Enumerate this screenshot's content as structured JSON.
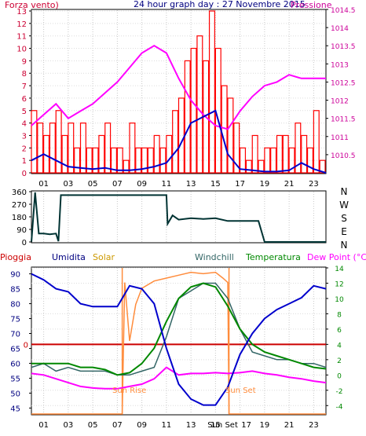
{
  "colors": {
    "wind": "#ff0000",
    "wind_avg": "#0000cc",
    "pressure": "#ff00ff",
    "direction": "#003333",
    "humidity": "#0000cc",
    "solar": "#ff8c3c",
    "windchill": "#336666",
    "temperature": "#008800",
    "dewpoint": "#ff00ff",
    "rain": "#cc0000",
    "axis_left_top": "#cc0033",
    "axis_right_top": "#cc0099",
    "axis_left_bottom": "#000080",
    "axis_right_bottom": "#008800",
    "title": "#000080"
  },
  "x_ticks": [
    "01",
    "03",
    "05",
    "07",
    "09",
    "11",
    "13",
    "15",
    "17",
    "19",
    "21",
    "23"
  ],
  "chart_data": [
    {
      "type": "bar",
      "title": "24 hour graph day : 27 Novembre 2015",
      "series": [
        {
          "name": "Forza vento",
          "type": "bar",
          "x": [
            0,
            0.5,
            1,
            1.5,
            2,
            2.5,
            3,
            3.5,
            4,
            4.5,
            5,
            5.5,
            6,
            6.5,
            7,
            7.5,
            8,
            8.5,
            9,
            9.5,
            10,
            10.5,
            11,
            11.5,
            12,
            12.5,
            13,
            13.5,
            14,
            14.5,
            15,
            15.5,
            16,
            16.5,
            17,
            17.5,
            18,
            18.5,
            19,
            19.5,
            20,
            20.5,
            21,
            21.5,
            22,
            22.5,
            23,
            23.5
          ],
          "y": [
            5,
            4,
            3,
            4,
            5,
            3,
            4,
            2,
            4,
            2,
            2,
            3,
            4,
            2,
            2,
            1,
            4,
            2,
            2,
            2,
            3,
            2,
            3,
            5,
            6,
            9,
            10,
            11,
            9,
            13,
            10,
            7,
            6,
            4,
            2,
            1,
            3,
            1,
            2,
            2,
            3,
            3,
            2,
            4,
            3,
            2,
            5,
            1
          ]
        },
        {
          "name": "Pressione",
          "x": [
            0,
            1,
            2,
            3,
            4,
            5,
            6,
            7,
            8,
            9,
            10,
            11,
            12,
            13,
            14,
            15,
            16,
            17,
            18,
            19,
            20,
            21,
            22,
            23,
            24
          ],
          "y": [
            1011.3,
            1011.6,
            1011.9,
            1011.5,
            1011.7,
            1011.9,
            1012.2,
            1012.5,
            1012.9,
            1013.3,
            1013.5,
            1013.3,
            1012.6,
            1012.0,
            1011.6,
            1011.3,
            1011.2,
            1011.7,
            1012.1,
            1012.4,
            1012.5,
            1012.7,
            1012.6,
            1012.6,
            1012.6
          ]
        },
        {
          "name": "Vento medio",
          "x": [
            0,
            1,
            2,
            3,
            4,
            5,
            6,
            7,
            8,
            9,
            10,
            11,
            12,
            13,
            14,
            15,
            16,
            17,
            18,
            19,
            20,
            21,
            22,
            23,
            24
          ],
          "y": [
            1,
            1.5,
            1,
            0.5,
            0.4,
            0.3,
            0.4,
            0.2,
            0.2,
            0.3,
            0.5,
            0.8,
            2,
            4,
            4.5,
            5,
            1.5,
            0.3,
            0.2,
            0.1,
            0.1,
            0.2,
            0.8,
            0.3,
            0
          ]
        }
      ],
      "left_axis": {
        "label": "Forza vento",
        "range": [
          0,
          13
        ],
        "ticks": [
          0,
          1,
          2,
          3,
          4,
          5,
          6,
          7,
          8,
          9,
          10,
          11,
          12,
          13
        ]
      },
      "right_axis": {
        "label": "Pressione",
        "range": [
          1010,
          1014.5
        ],
        "ticks": [
          "1010.5",
          "1011",
          "1011.5",
          "1012",
          "1012.5",
          "1013",
          "1013.5",
          "1014",
          "1014.5"
        ]
      },
      "xlim": [
        0,
        24
      ]
    },
    {
      "type": "line",
      "series": [
        {
          "name": "Direzione vento",
          "x": [
            0,
            0.3,
            0.6,
            0.7,
            1,
            1.5,
            2,
            2.2,
            2.4,
            3,
            5,
            7,
            9,
            10,
            11,
            11.1,
            11.5,
            12,
            13,
            14,
            15,
            16,
            17,
            18,
            18.5,
            19,
            20,
            22,
            24
          ],
          "y": [
            0,
            355,
            60,
            60,
            60,
            55,
            60,
            5,
            335,
            335,
            335,
            335,
            335,
            335,
            335,
            130,
            190,
            160,
            170,
            165,
            170,
            150,
            150,
            150,
            150,
            0,
            0,
            0,
            0
          ]
        }
      ],
      "left_axis": {
        "range": [
          0,
          360
        ],
        "ticks": [
          "0",
          "90",
          "180",
          "270",
          "360"
        ]
      },
      "right_axis": {
        "ticks": [
          "N",
          "W",
          "S",
          "E",
          "N"
        ]
      },
      "xlim": [
        0,
        24
      ]
    },
    {
      "type": "line",
      "series": [
        {
          "name": "Umidita",
          "x": [
            0,
            1,
            2,
            3,
            4,
            5,
            6,
            7,
            8,
            9,
            10,
            11,
            12,
            13,
            14,
            15,
            16,
            17,
            18,
            19,
            20,
            21,
            22,
            23,
            24
          ],
          "y": [
            90,
            88,
            85,
            84,
            80,
            79,
            79,
            79,
            86,
            85,
            80,
            65,
            53,
            48,
            46,
            46,
            52,
            63,
            70,
            75,
            78,
            80,
            82,
            86,
            85
          ]
        },
        {
          "name": "Solar",
          "x": [
            0,
            7.4,
            7.6,
            8,
            8.5,
            9,
            10,
            11,
            12,
            13,
            14,
            15,
            15.6,
            16,
            16.1,
            24
          ],
          "y": [
            0,
            0,
            0.9,
            0.5,
            0.75,
            0.86,
            0.91,
            0.93,
            0.95,
            0.97,
            0.96,
            0.97,
            0.93,
            0.9,
            0,
            0
          ]
        },
        {
          "name": "Windchill",
          "x": [
            0,
            1,
            2,
            3,
            4,
            5,
            6,
            7,
            8,
            9,
            10,
            11,
            12,
            13,
            14,
            15,
            16,
            17,
            18,
            19,
            20,
            21,
            22,
            23,
            24
          ],
          "y": [
            1,
            1.5,
            0.5,
            1,
            0.5,
            0.5,
            0.5,
            0,
            0,
            0.5,
            1,
            5,
            10,
            11,
            12,
            12,
            10,
            6,
            3,
            2.5,
            2,
            2,
            1.5,
            1.5,
            1
          ]
        },
        {
          "name": "Temperatura",
          "x": [
            0,
            1,
            2,
            3,
            4,
            5,
            6,
            7,
            8,
            9,
            10,
            11,
            12,
            13,
            14,
            15,
            16,
            17,
            18,
            19,
            20,
            21,
            22,
            23,
            24
          ],
          "y": [
            1.5,
            1.5,
            1.5,
            1.5,
            1,
            1,
            0.7,
            0,
            0.3,
            1.5,
            3.5,
            7,
            10,
            11.5,
            12,
            11.5,
            9,
            6,
            4,
            3,
            2.5,
            2,
            1.5,
            1,
            0.8
          ]
        },
        {
          "name": "Dew Point",
          "x": [
            0,
            1,
            2,
            3,
            4,
            5,
            6,
            7,
            8,
            9,
            10,
            11,
            12,
            13,
            14,
            15,
            16,
            17,
            18,
            19,
            20,
            21,
            22,
            23,
            24
          ],
          "y": [
            0.2,
            0,
            -0.5,
            -1,
            -1.5,
            -1.7,
            -1.8,
            -1.8,
            -1.5,
            -1.2,
            -0.5,
            1,
            0,
            0.2,
            0.2,
            0.3,
            0.2,
            0.3,
            0.5,
            0.2,
            0,
            -0.3,
            -0.5,
            -0.8,
            -1
          ]
        },
        {
          "name": "Pioggia",
          "x": [
            0,
            24
          ],
          "y": [
            0,
            0
          ]
        }
      ],
      "left_axis": {
        "label": "Umidita",
        "range": [
          43,
          92
        ],
        "ticks": [
          45,
          50,
          55,
          60,
          65,
          70,
          75,
          80,
          85,
          90
        ]
      },
      "right_axis": {
        "label": "Dew Point (°C)",
        "range": [
          -5,
          14
        ],
        "ticks": [
          -4,
          -2,
          0,
          2,
          4,
          6,
          8,
          10,
          12,
          14
        ]
      },
      "rain_axis": {
        "label": "Pioggia",
        "ticks": [
          "0"
        ]
      },
      "sun_rise": {
        "label": "Sun Rise",
        "x": 7.4
      },
      "sun_set": {
        "label": "Sun Set",
        "x": 16.1
      },
      "x_tick_labels": [
        "01",
        "03",
        "05",
        "07",
        "09",
        "11",
        "13",
        "15",
        "Sun Set",
        "17",
        "19",
        "21",
        "23"
      ],
      "xlim": [
        0,
        24
      ]
    }
  ],
  "labels": {
    "wind": "Forza vento)",
    "title": "24 hour graph day : 27 Novembre 2015",
    "pressure": "Pressione",
    "rain": "Pioggia",
    "humidity": "Umidita",
    "solar": "Solar",
    "windchill": "Windchill",
    "temperature": "Temperatura",
    "dewpoint": "Dew Point (°C)",
    "sun_rise": "Sun Rise",
    "sun_set": "Sun Set"
  }
}
